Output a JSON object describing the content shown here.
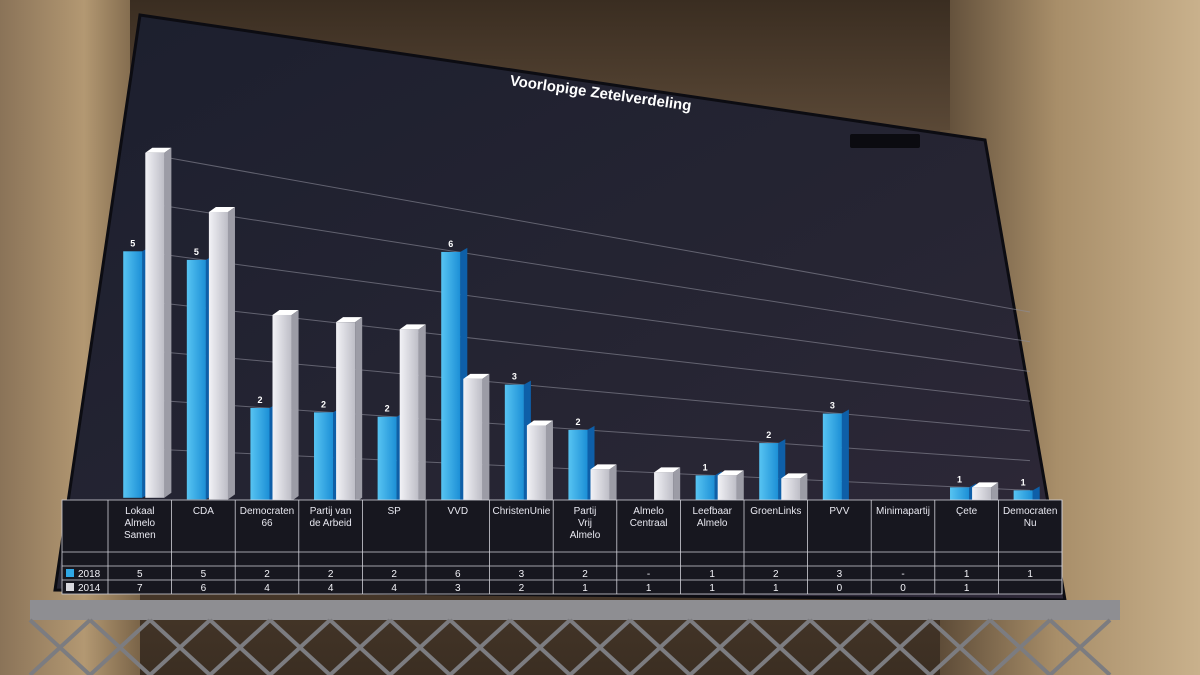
{
  "chart_data": {
    "type": "bar",
    "title": "Voorlopige Zetelverdeling",
    "categories": [
      "Lokaal Almelo Samen",
      "CDA",
      "Democraten 66",
      "Partij van de Arbeid",
      "SP",
      "VVD",
      "ChristenUnie",
      "Partij Vrij Almelo",
      "Almelo Centraal",
      "Leefbaar Almelo",
      "GroenLinks",
      "PVV",
      "Minimapartij",
      "Çete",
      "Democraten Nu"
    ],
    "series": [
      {
        "name": "2018",
        "values": [
          5,
          5,
          2,
          2,
          2,
          6,
          3,
          2,
          null,
          1,
          2,
          3,
          null,
          1,
          1
        ],
        "table_values": [
          "5",
          "5",
          "2",
          "2",
          "2",
          "6",
          "3",
          "2",
          "-",
          "1",
          "2",
          "3",
          "-",
          "1",
          "1"
        ],
        "data_labels": [
          "5",
          "5",
          "2",
          "2",
          "2",
          "6",
          "3",
          "2",
          "",
          "1",
          "2",
          "3",
          "",
          "1",
          "1"
        ],
        "color": "#2fa8e6"
      },
      {
        "name": "2014",
        "values": [
          7,
          6,
          4,
          4,
          4,
          3,
          2,
          1,
          1,
          1,
          1,
          0,
          0,
          1,
          null
        ],
        "table_values": [
          "7",
          "6",
          "4",
          "4",
          "4",
          "3",
          "2",
          "1",
          "1",
          "1",
          "1",
          "0",
          "0",
          "1",
          ""
        ],
        "color": "#d9d9df"
      }
    ],
    "ylim": [
      0,
      7
    ],
    "grid": true,
    "legend": "data-table"
  }
}
